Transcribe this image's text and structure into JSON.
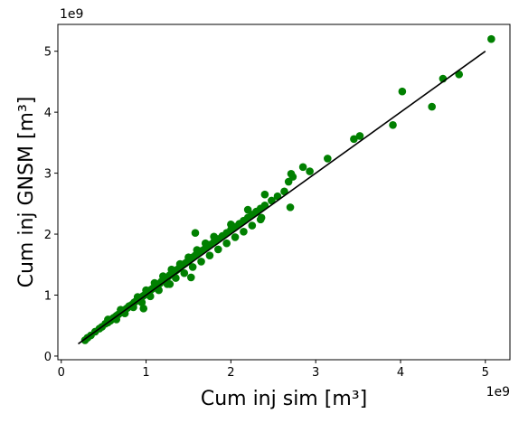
{
  "chart_data": {
    "type": "scatter",
    "title": "",
    "xlabel": "Cum inj sim [m³]",
    "ylabel": "Cum inj GNSM [m³]",
    "x_offset_label": "1e9",
    "y_offset_label": "1e9",
    "xlim": [
      -0.04,
      5.29
    ],
    "ylim": [
      -0.06,
      5.44
    ],
    "x_ticks": [
      0,
      1,
      2,
      3,
      4,
      5
    ],
    "y_ticks": [
      0,
      1,
      2,
      3,
      4,
      5
    ],
    "grid": false,
    "legend": "none",
    "series": [
      {
        "kind": "points",
        "color": "#008000",
        "x": [
          0.28,
          0.31,
          0.35,
          0.4,
          0.45,
          0.48,
          0.52,
          0.55,
          0.58,
          0.6,
          0.62,
          0.65,
          0.67,
          0.7,
          0.72,
          0.74,
          0.76,
          0.78,
          0.8,
          0.82,
          0.84,
          0.86,
          0.88,
          0.9,
          0.92,
          0.94,
          0.96,
          0.98,
          1.0,
          1.02,
          1.04,
          1.06,
          1.08,
          1.1,
          1.12,
          1.14,
          1.16,
          1.18,
          1.2,
          1.22,
          1.24,
          1.26,
          1.28,
          1.3,
          1.32,
          1.34,
          1.36,
          1.38,
          1.4,
          1.42,
          1.44,
          1.46,
          1.48,
          1.5,
          1.52,
          1.55,
          1.58,
          1.6,
          1.63,
          1.66,
          1.7,
          1.73,
          1.76,
          1.8,
          1.85,
          1.9,
          1.95,
          2.0,
          2.05,
          2.1,
          2.15,
          2.2,
          2.25,
          2.3,
          2.35,
          2.4,
          2.48,
          2.55,
          2.63,
          2.68,
          2.71,
          2.73,
          2.85,
          2.93,
          3.14,
          3.45,
          3.52,
          3.91,
          4.02,
          4.37,
          4.5,
          4.69,
          5.07,
          0.65,
          0.75,
          0.85,
          0.95,
          1.05,
          1.15,
          1.25,
          1.35,
          1.45,
          1.55,
          1.65,
          1.75,
          1.85,
          1.95,
          2.05,
          2.15,
          2.25,
          2.35,
          0.55,
          0.7,
          0.9,
          1.0,
          1.1,
          1.2,
          1.3,
          1.4,
          1.5,
          1.6,
          1.7,
          1.8,
          2.0,
          2.2,
          2.4,
          0.97,
          1.28,
          1.53,
          1.58,
          2.36,
          2.7
        ],
        "y": [
          0.26,
          0.3,
          0.34,
          0.4,
          0.45,
          0.48,
          0.53,
          0.55,
          0.58,
          0.61,
          0.63,
          0.66,
          0.68,
          0.71,
          0.73,
          0.75,
          0.77,
          0.79,
          0.82,
          0.83,
          0.85,
          0.88,
          0.9,
          0.92,
          0.94,
          0.96,
          0.98,
          1.0,
          1.02,
          1.05,
          1.07,
          1.09,
          1.11,
          1.13,
          1.15,
          1.17,
          1.19,
          1.22,
          1.24,
          1.26,
          1.28,
          1.3,
          1.33,
          1.35,
          1.37,
          1.39,
          1.41,
          1.43,
          1.45,
          1.48,
          1.5,
          1.52,
          1.54,
          1.56,
          1.58,
          1.62,
          1.65,
          1.67,
          1.7,
          1.73,
          1.77,
          1.8,
          1.83,
          1.87,
          1.92,
          1.97,
          2.02,
          2.07,
          2.12,
          2.17,
          2.22,
          2.27,
          2.32,
          2.37,
          2.42,
          2.47,
          2.55,
          2.62,
          2.7,
          2.86,
          2.99,
          2.94,
          3.1,
          3.03,
          3.24,
          3.56,
          3.61,
          3.79,
          4.34,
          4.09,
          4.55,
          4.62,
          5.2,
          0.6,
          0.7,
          0.8,
          0.88,
          0.98,
          1.08,
          1.18,
          1.28,
          1.36,
          1.46,
          1.55,
          1.65,
          1.75,
          1.85,
          1.95,
          2.04,
          2.14,
          2.24,
          0.6,
          0.76,
          0.97,
          1.08,
          1.2,
          1.31,
          1.42,
          1.51,
          1.62,
          1.74,
          1.85,
          1.96,
          2.16,
          2.4,
          2.65,
          0.78,
          1.18,
          1.29,
          2.02,
          2.27,
          2.44
        ]
      },
      {
        "kind": "line",
        "color": "#000000",
        "x": [
          0.2,
          5.0
        ],
        "y": [
          0.2,
          5.0
        ]
      }
    ]
  }
}
